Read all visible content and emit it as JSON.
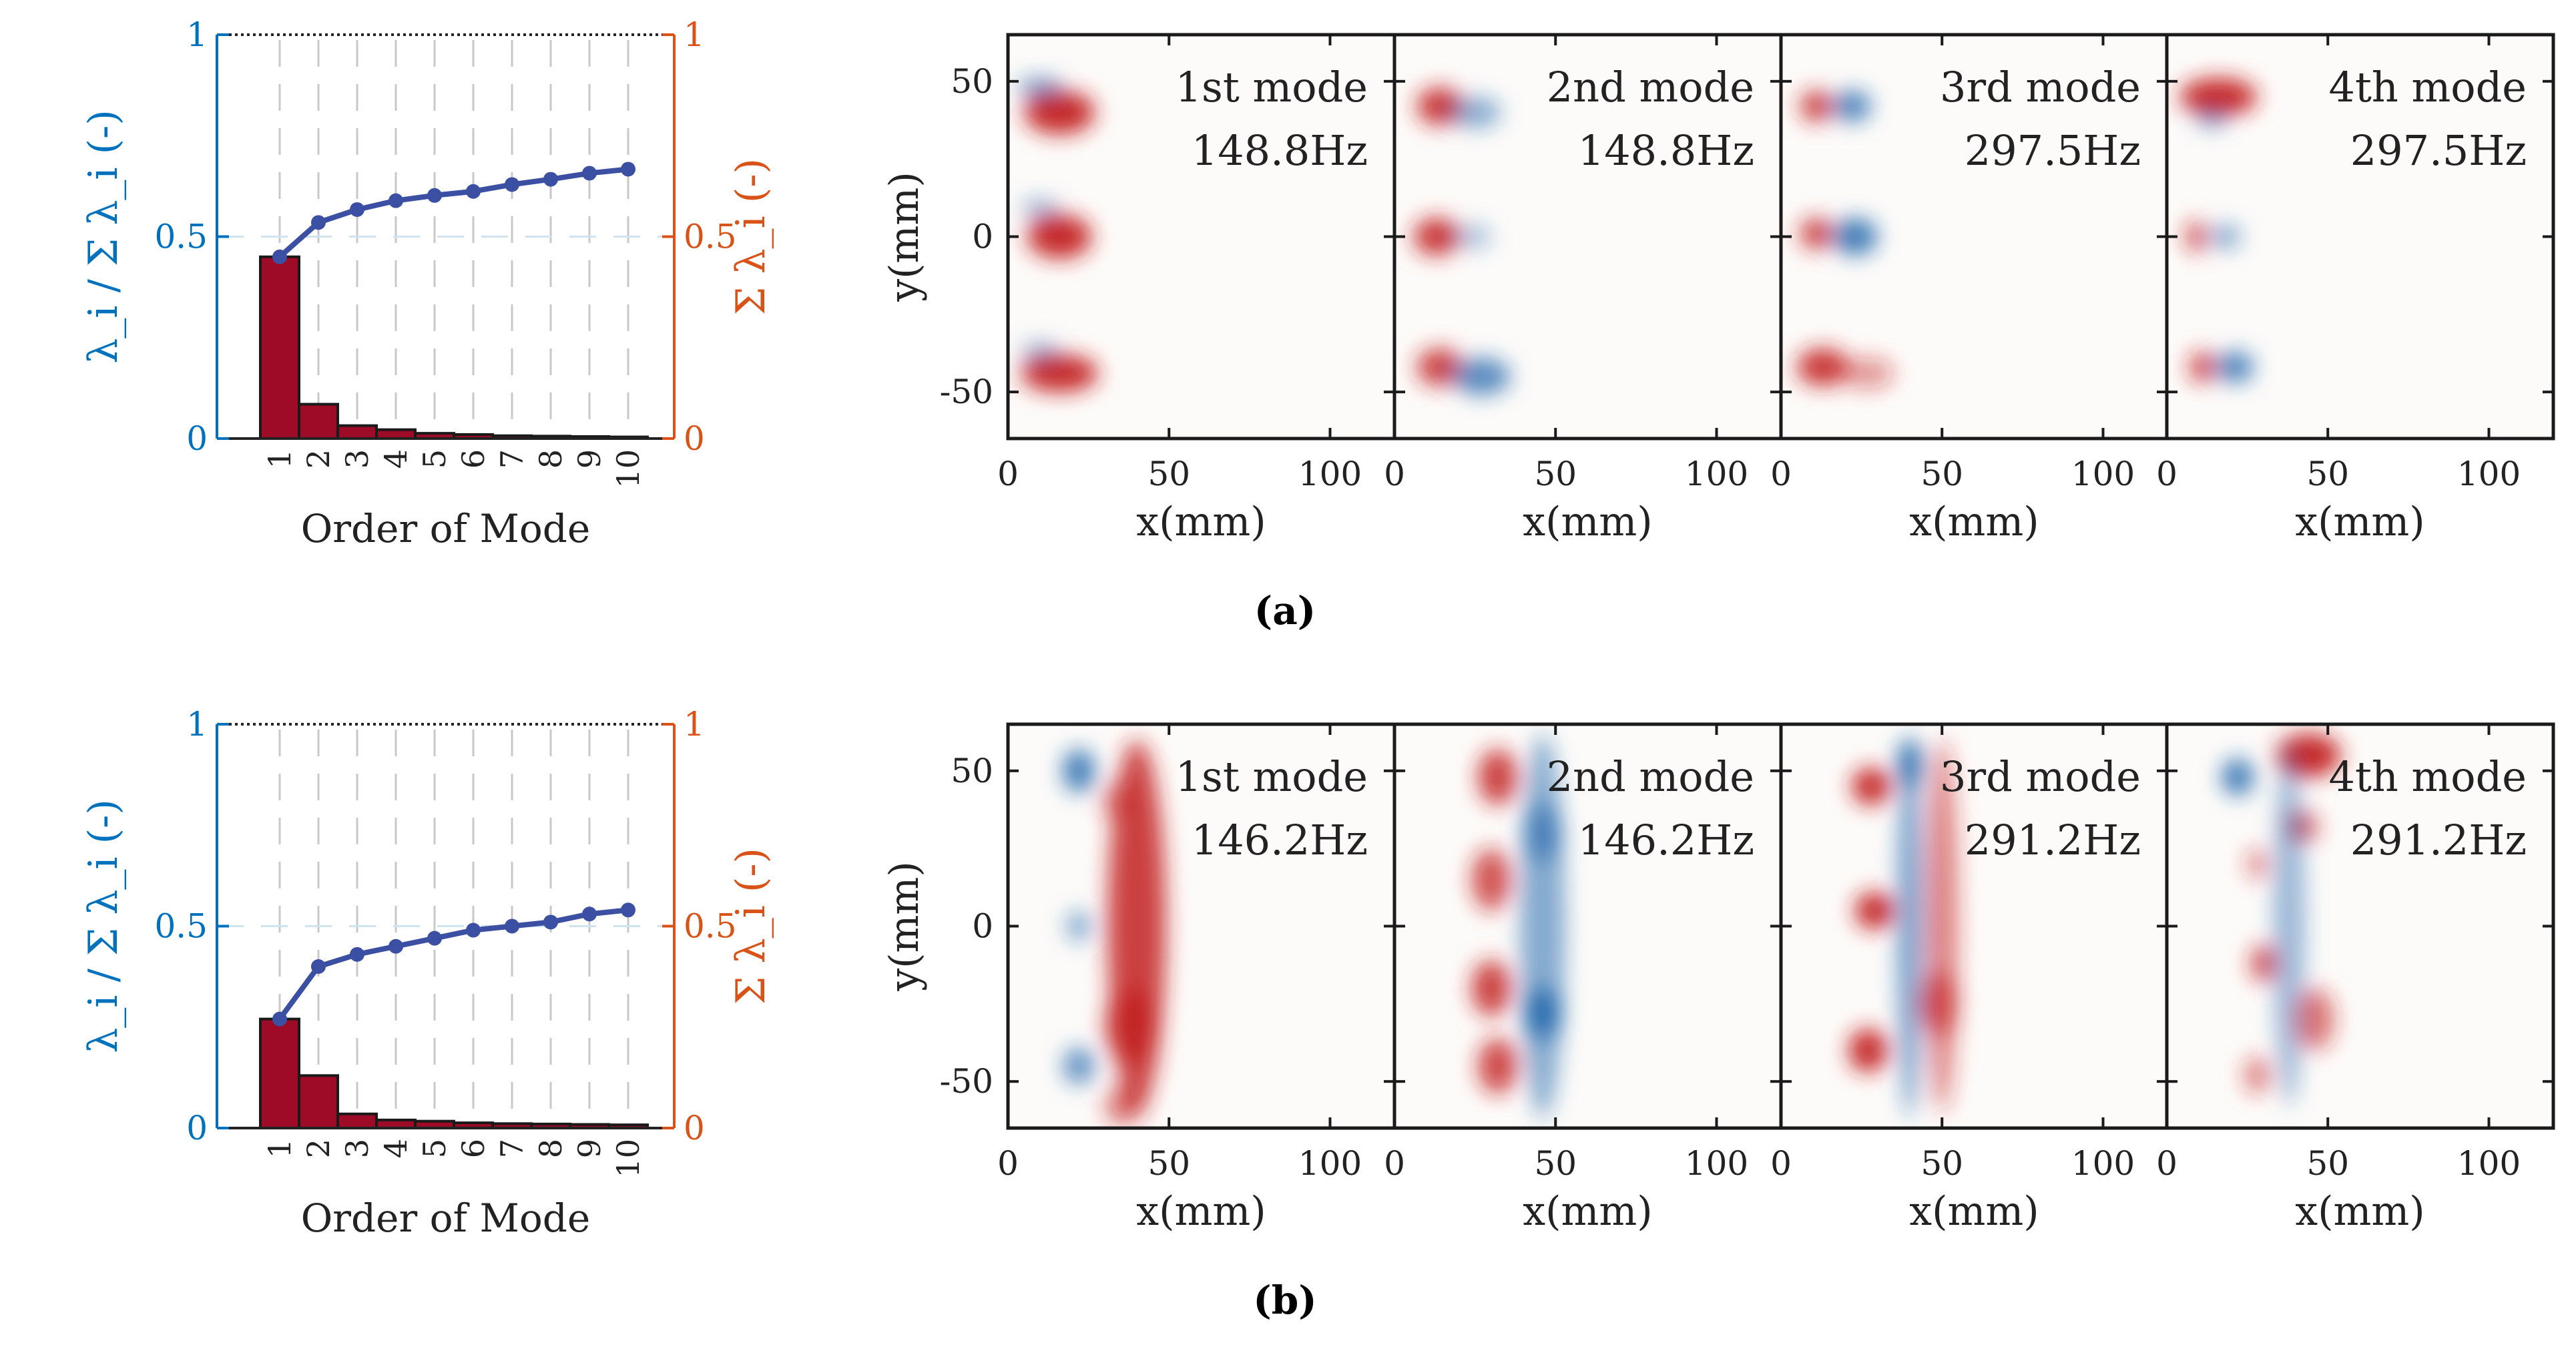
{
  "colors": {
    "left_axis": "#0072BD",
    "right_axis": "#D95319",
    "bar_fill": "#9E0B26",
    "line": "#3B4FA3",
    "warm": "#C21D1D",
    "cool": "#2166AC"
  },
  "panel_labels": [
    "(a)",
    "(b)"
  ],
  "chart_data": [
    {
      "type": "bar",
      "panel": "(a)",
      "xlabel": "Order of Mode",
      "ylabel_left": "λ_i / Σ λ_i (-)",
      "ylabel_right": "Σ λ_i (-)",
      "categories": [
        "1",
        "2",
        "3",
        "4",
        "5",
        "6",
        "7",
        "8",
        "9",
        "10"
      ],
      "series": [
        {
          "axis": "left",
          "chart": "bar",
          "values": [
            0.45,
            0.085,
            0.032,
            0.022,
            0.013,
            0.01,
            0.007,
            0.006,
            0.005,
            0.004
          ]
        },
        {
          "axis": "right",
          "chart": "line",
          "values": [
            0.45,
            0.535,
            0.567,
            0.589,
            0.602,
            0.612,
            0.629,
            0.642,
            0.657,
            0.667
          ]
        }
      ],
      "ylim_left": [
        0,
        1
      ],
      "yticks_left": [
        "0",
        "0.5",
        "1"
      ],
      "ylim_right": [
        0,
        1
      ],
      "yticks_right": [
        "0",
        "0.5",
        "1"
      ],
      "grid": "vertical dashed",
      "reference_line": 0.5
    },
    {
      "type": "bar",
      "panel": "(b)",
      "xlabel": "Order of Mode",
      "ylabel_left": "λ_i / Σ λ_i (-)",
      "ylabel_right": "Σ λ_i (-)",
      "categories": [
        "1",
        "2",
        "3",
        "4",
        "5",
        "6",
        "7",
        "8",
        "9",
        "10"
      ],
      "series": [
        {
          "axis": "left",
          "chart": "bar",
          "values": [
            0.27,
            0.13,
            0.035,
            0.02,
            0.017,
            0.013,
            0.011,
            0.01,
            0.009,
            0.008
          ]
        },
        {
          "axis": "right",
          "chart": "line",
          "values": [
            0.27,
            0.4,
            0.43,
            0.45,
            0.47,
            0.49,
            0.5,
            0.51,
            0.53,
            0.54
          ]
        }
      ],
      "ylim_left": [
        0,
        1
      ],
      "yticks_left": [
        "0",
        "0.5",
        "1"
      ],
      "ylim_right": [
        0,
        1
      ],
      "yticks_right": [
        "0",
        "0.5",
        "1"
      ],
      "grid": "vertical dashed",
      "reference_line": 0.5
    },
    {
      "type": "heatmap",
      "panel": "(a)",
      "xlabel": "x(mm)",
      "ylabel": "y(mm)",
      "xlim": [
        0,
        120
      ],
      "ylim": [
        -65,
        65
      ],
      "xticks": [
        "0",
        "50",
        "100"
      ],
      "yticks": [
        "50",
        "0",
        "-50"
      ],
      "modes": [
        {
          "name": "1st mode",
          "freq": "148.8Hz"
        },
        {
          "name": "2nd mode",
          "freq": "148.8Hz"
        },
        {
          "name": "3rd mode",
          "freq": "297.5Hz"
        },
        {
          "name": "4th mode",
          "freq": "297.5Hz"
        }
      ]
    },
    {
      "type": "heatmap",
      "panel": "(b)",
      "xlabel": "x(mm)",
      "ylabel": "y(mm)",
      "xlim": [
        0,
        120
      ],
      "ylim": [
        -65,
        65
      ],
      "xticks": [
        "0",
        "50",
        "100"
      ],
      "yticks": [
        "50",
        "0",
        "-50"
      ],
      "modes": [
        {
          "name": "1st mode",
          "freq": "146.2Hz"
        },
        {
          "name": "2nd mode",
          "freq": "146.2Hz"
        },
        {
          "name": "3rd mode",
          "freq": "291.2Hz"
        },
        {
          "name": "4th mode",
          "freq": "291.2Hz"
        }
      ]
    }
  ]
}
